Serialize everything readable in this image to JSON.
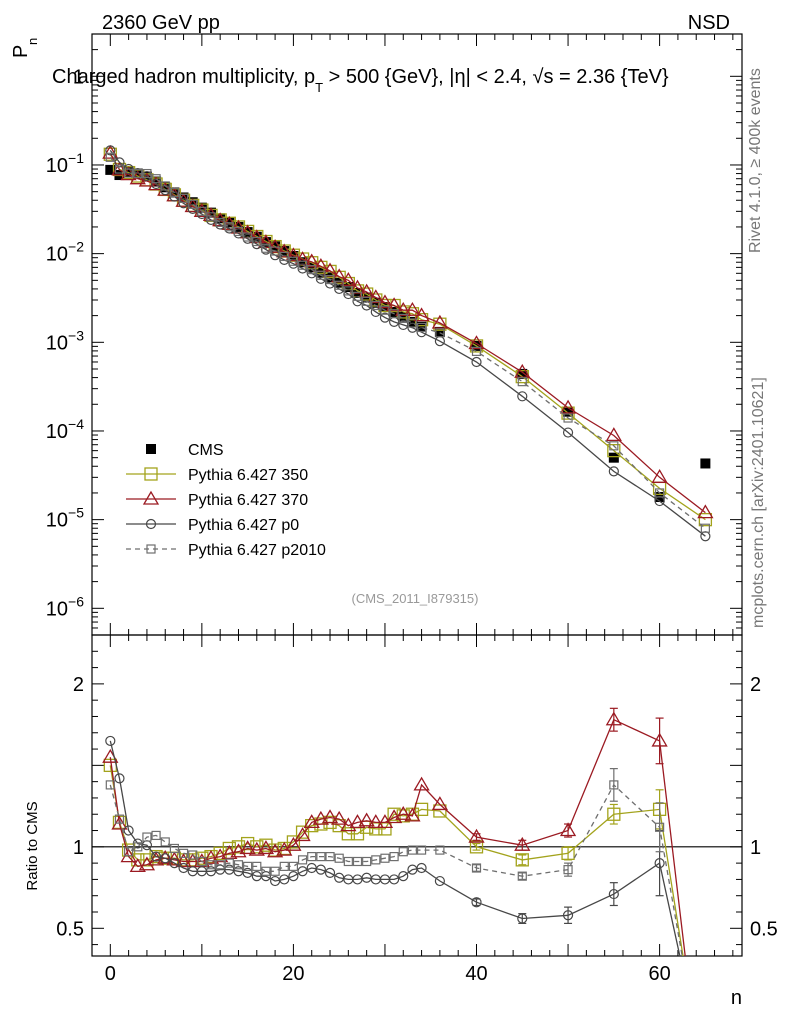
{
  "header": {
    "left": "2360 GeV pp",
    "right": "NSD",
    "side_rivet": "Rivet 4.1.0, ≥ 400k events",
    "side_mcplots": "mcplots.cern.ch [arXiv:2401.10621]"
  },
  "chart_data": [
    {
      "type": "scatter",
      "panel": "main",
      "title": "Charged hadron multiplicity, p_T > 500 {GeV}, |η| < 2.4, √s = 2.36 {TeV}",
      "title_parts": {
        "pre": "Charged hadron multiplicity, p",
        "sub": "T",
        "mid": " > 500 {GeV}, |η| < 2.4, ",
        "root": "√s",
        "post": " = 2.36 {TeV}"
      },
      "ylabel": "P",
      "ylabel_sub": "n",
      "yscale": "log",
      "ylim": [
        5e-07,
        3
      ],
      "xlim": [
        -2,
        69
      ],
      "yticks": [
        {
          "v": 1e-06,
          "m": "10",
          "e": "−6"
        },
        {
          "v": 1e-05,
          "m": "10",
          "e": "−5"
        },
        {
          "v": 0.0001,
          "m": "10",
          "e": "−4"
        },
        {
          "v": 0.001,
          "m": "10",
          "e": "−3"
        },
        {
          "v": 0.01,
          "m": "10",
          "e": "−2"
        },
        {
          "v": 0.1,
          "m": "10",
          "e": "−1"
        },
        {
          "v": 1,
          "m": "1",
          "e": ""
        }
      ],
      "watermark": "(CMS_2011_I879315)",
      "legend_position": "lower-left",
      "x": [
        0,
        1,
        2,
        3,
        4,
        5,
        6,
        7,
        8,
        9,
        10,
        11,
        12,
        13,
        14,
        15,
        16,
        17,
        18,
        19,
        20,
        21,
        22,
        23,
        24,
        25,
        26,
        27,
        28,
        29,
        30,
        31,
        32,
        33,
        34,
        36,
        40,
        45,
        50,
        55,
        60,
        65
      ],
      "series": [
        {
          "name": "CMS",
          "style": "data",
          "color": "#000000",
          "values": [
            0.088,
            0.077,
            0.083,
            0.08,
            0.074,
            0.065,
            0.056,
            0.049,
            0.043,
            0.038,
            0.033,
            0.029,
            0.025,
            0.0225,
            0.02,
            0.0175,
            0.0155,
            0.0135,
            0.0121,
            0.0107,
            0.0094,
            0.008,
            0.007,
            0.0061,
            0.0054,
            0.0047,
            0.0042,
            0.0036,
            0.0032,
            0.0028,
            0.0025,
            0.0022,
            0.00195,
            0.0017,
            0.0015,
            0.00131,
            0.00091,
            0.00044,
            0.000165,
            5e-05,
            1.8e-05,
            4.3e-05
          ]
        },
        {
          "name": "Pythia 6.427 350",
          "style": "square-open",
          "color": "#a3a31c",
          "values": [
            0.132,
            0.089,
            0.082,
            0.075,
            0.068,
            0.061,
            0.053,
            0.046,
            0.04,
            0.035,
            0.031,
            0.027,
            0.024,
            0.022,
            0.02,
            0.0178,
            0.0156,
            0.0137,
            0.012,
            0.0107,
            0.0096,
            0.0087,
            0.0079,
            0.007,
            0.0063,
            0.0054,
            0.0046,
            0.0038,
            0.0035,
            0.003,
            0.0026,
            0.0026,
            0.0022,
            0.0021,
            0.0018,
            0.0016,
            0.00091,
            0.00041,
            0.000159,
            6e-05,
            2.25e-05,
            1e-05
          ]
        },
        {
          "name": "Pythia 6.427 370",
          "style": "triangle-open",
          "color": "#9b1a22",
          "values": [
            0.136,
            0.088,
            0.078,
            0.07,
            0.066,
            0.06,
            0.052,
            0.045,
            0.039,
            0.034,
            0.03,
            0.027,
            0.0236,
            0.0215,
            0.0195,
            0.0172,
            0.0152,
            0.0134,
            0.0118,
            0.0105,
            0.0095,
            0.0086,
            0.0081,
            0.0072,
            0.0064,
            0.0055,
            0.005,
            0.0041,
            0.0037,
            0.0032,
            0.0028,
            0.0026,
            0.0023,
            0.0023,
            0.002,
            0.00165,
            0.00097,
            0.00046,
            0.000182,
            8.9e-05,
            3e-05,
            1.2e-05
          ]
        },
        {
          "name": "Pythia 6.427 p0",
          "style": "circle-open",
          "color": "#474747",
          "values": [
            0.146,
            0.107,
            0.09,
            0.081,
            0.075,
            0.061,
            0.052,
            0.044,
            0.037,
            0.032,
            0.028,
            0.024,
            0.0213,
            0.0192,
            0.0169,
            0.0147,
            0.0128,
            0.0111,
            0.0096,
            0.0085,
            0.0077,
            0.0068,
            0.006,
            0.0052,
            0.0046,
            0.004,
            0.0035,
            0.0029,
            0.0026,
            0.0022,
            0.0019,
            0.0017,
            0.00157,
            0.00146,
            0.0013,
            0.00103,
            0.0006,
            0.000246,
            9.6e-05,
            3.5e-05,
            1.62e-05,
            6.5e-06
          ]
        },
        {
          "name": "Pythia 6.427 p2010",
          "style": "square-open-dashed",
          "color": "#6e6e6e",
          "values": [
            0.122,
            0.09,
            0.081,
            0.08,
            0.08,
            0.07,
            0.058,
            0.049,
            0.042,
            0.036,
            0.03,
            0.026,
            0.0225,
            0.0201,
            0.0178,
            0.0154,
            0.0137,
            0.0115,
            0.0107,
            0.0093,
            0.0082,
            0.0074,
            0.0066,
            0.0057,
            0.0051,
            0.0044,
            0.0038,
            0.0033,
            0.0029,
            0.0026,
            0.0023,
            0.0021,
            0.00186,
            0.00165,
            0.00147,
            0.00128,
            0.00079,
            0.00036,
            0.00014,
            6.8e-05,
            2e-05,
            8e-06
          ]
        }
      ]
    },
    {
      "type": "line",
      "panel": "ratio",
      "ylabel": "Ratio to CMS",
      "xlabel": "n",
      "ylim": [
        0.33,
        2.3
      ],
      "xlim": [
        -2,
        69
      ],
      "yticks": [
        {
          "v": 0.5,
          "label": "0.5"
        },
        {
          "v": 1,
          "label": "1"
        },
        {
          "v": 2,
          "label": "2"
        }
      ],
      "xticks": [
        {
          "v": 0,
          "label": "0"
        },
        {
          "v": 20,
          "label": "20"
        },
        {
          "v": 40,
          "label": "40"
        },
        {
          "v": 60,
          "label": "60"
        }
      ],
      "x": [
        0,
        1,
        2,
        3,
        4,
        5,
        6,
        7,
        8,
        9,
        10,
        11,
        12,
        13,
        14,
        15,
        16,
        17,
        18,
        19,
        20,
        21,
        22,
        23,
        24,
        25,
        26,
        27,
        28,
        29,
        30,
        31,
        32,
        33,
        34,
        36,
        40,
        45,
        50,
        55,
        60
      ],
      "end_x": 63.5,
      "series": [
        {
          "name": "Pythia 6.427 350",
          "style": "square-open",
          "color": "#a3a31c",
          "values": [
            1.5,
            1.15,
            0.98,
            0.92,
            0.92,
            0.94,
            0.93,
            0.93,
            0.92,
            0.92,
            0.93,
            0.94,
            0.96,
            0.99,
            1.0,
            1.02,
            1.0,
            1.01,
            0.98,
            0.99,
            1.03,
            1.09,
            1.13,
            1.14,
            1.15,
            1.13,
            1.08,
            1.08,
            1.12,
            1.11,
            1.11,
            1.2,
            1.19,
            1.2,
            1.23,
            1.22,
            1.0,
            0.92,
            0.96,
            1.2,
            1.23
          ],
          "errors": [
            0,
            0,
            0,
            0,
            0,
            0,
            0,
            0,
            0,
            0,
            0,
            0,
            0,
            0,
            0,
            0,
            0,
            0,
            0,
            0,
            0,
            0,
            0,
            0,
            0,
            0,
            0,
            0,
            0,
            0,
            0,
            0,
            0,
            0,
            0,
            0,
            0.02,
            0.03,
            0.04,
            0.06,
            0.12
          ]
        },
        {
          "name": "Pythia 6.427 370",
          "style": "triangle-open",
          "color": "#9b1a22",
          "values": [
            1.55,
            1.14,
            0.94,
            0.88,
            0.89,
            0.92,
            0.93,
            0.92,
            0.91,
            0.91,
            0.91,
            0.93,
            0.94,
            0.96,
            0.97,
            0.99,
            0.98,
            0.99,
            0.97,
            0.98,
            1.01,
            1.07,
            1.15,
            1.17,
            1.18,
            1.17,
            1.13,
            1.15,
            1.16,
            1.15,
            1.15,
            1.18,
            1.2,
            1.19,
            1.38,
            1.26,
            1.06,
            1.01,
            1.1,
            1.78,
            1.65
          ],
          "errors": [
            0,
            0,
            0,
            0,
            0,
            0,
            0,
            0,
            0,
            0,
            0,
            0,
            0,
            0,
            0,
            0,
            0,
            0,
            0,
            0,
            0,
            0,
            0,
            0,
            0,
            0,
            0,
            0,
            0,
            0,
            0,
            0,
            0,
            0,
            0,
            0,
            0.02,
            0.03,
            0.04,
            0.07,
            0.14
          ]
        },
        {
          "name": "Pythia 6.427 p0",
          "style": "circle-open",
          "color": "#474747",
          "values": [
            1.65,
            1.42,
            1.1,
            1.02,
            1.01,
            0.94,
            0.93,
            0.9,
            0.87,
            0.85,
            0.85,
            0.85,
            0.86,
            0.86,
            0.85,
            0.84,
            0.82,
            0.82,
            0.79,
            0.8,
            0.82,
            0.85,
            0.87,
            0.86,
            0.84,
            0.81,
            0.8,
            0.8,
            0.81,
            0.8,
            0.8,
            0.8,
            0.82,
            0.86,
            0.87,
            0.79,
            0.66,
            0.56,
            0.58,
            0.71,
            0.9
          ],
          "errors": [
            0,
            0,
            0,
            0,
            0,
            0,
            0,
            0,
            0,
            0,
            0,
            0,
            0,
            0,
            0,
            0,
            0,
            0,
            0,
            0,
            0,
            0,
            0,
            0,
            0,
            0,
            0,
            0,
            0,
            0,
            0,
            0,
            0,
            0,
            0,
            0,
            0.02,
            0.03,
            0.05,
            0.07,
            0.2
          ]
        },
        {
          "name": "Pythia 6.427 p2010",
          "style": "square-open-dashed",
          "color": "#6e6e6e",
          "values": [
            1.38,
            1.17,
            0.97,
            1.0,
            1.06,
            1.07,
            1.03,
            0.99,
            0.96,
            0.95,
            0.91,
            0.89,
            0.89,
            0.9,
            0.89,
            0.88,
            0.88,
            0.85,
            0.85,
            0.88,
            0.88,
            0.92,
            0.94,
            0.94,
            0.94,
            0.93,
            0.91,
            0.91,
            0.91,
            0.92,
            0.93,
            0.94,
            0.97,
            0.98,
            0.98,
            0.98,
            0.87,
            0.82,
            0.86,
            1.38,
            1.12
          ],
          "errors": [
            0,
            0,
            0,
            0,
            0,
            0,
            0,
            0,
            0,
            0,
            0,
            0,
            0,
            0,
            0,
            0,
            0,
            0,
            0,
            0,
            0,
            0,
            0,
            0,
            0,
            0,
            0,
            0,
            0,
            0,
            0,
            0,
            0,
            0,
            0,
            0,
            0.02,
            0.02,
            0.04,
            0.1,
            0.15
          ]
        }
      ]
    }
  ]
}
